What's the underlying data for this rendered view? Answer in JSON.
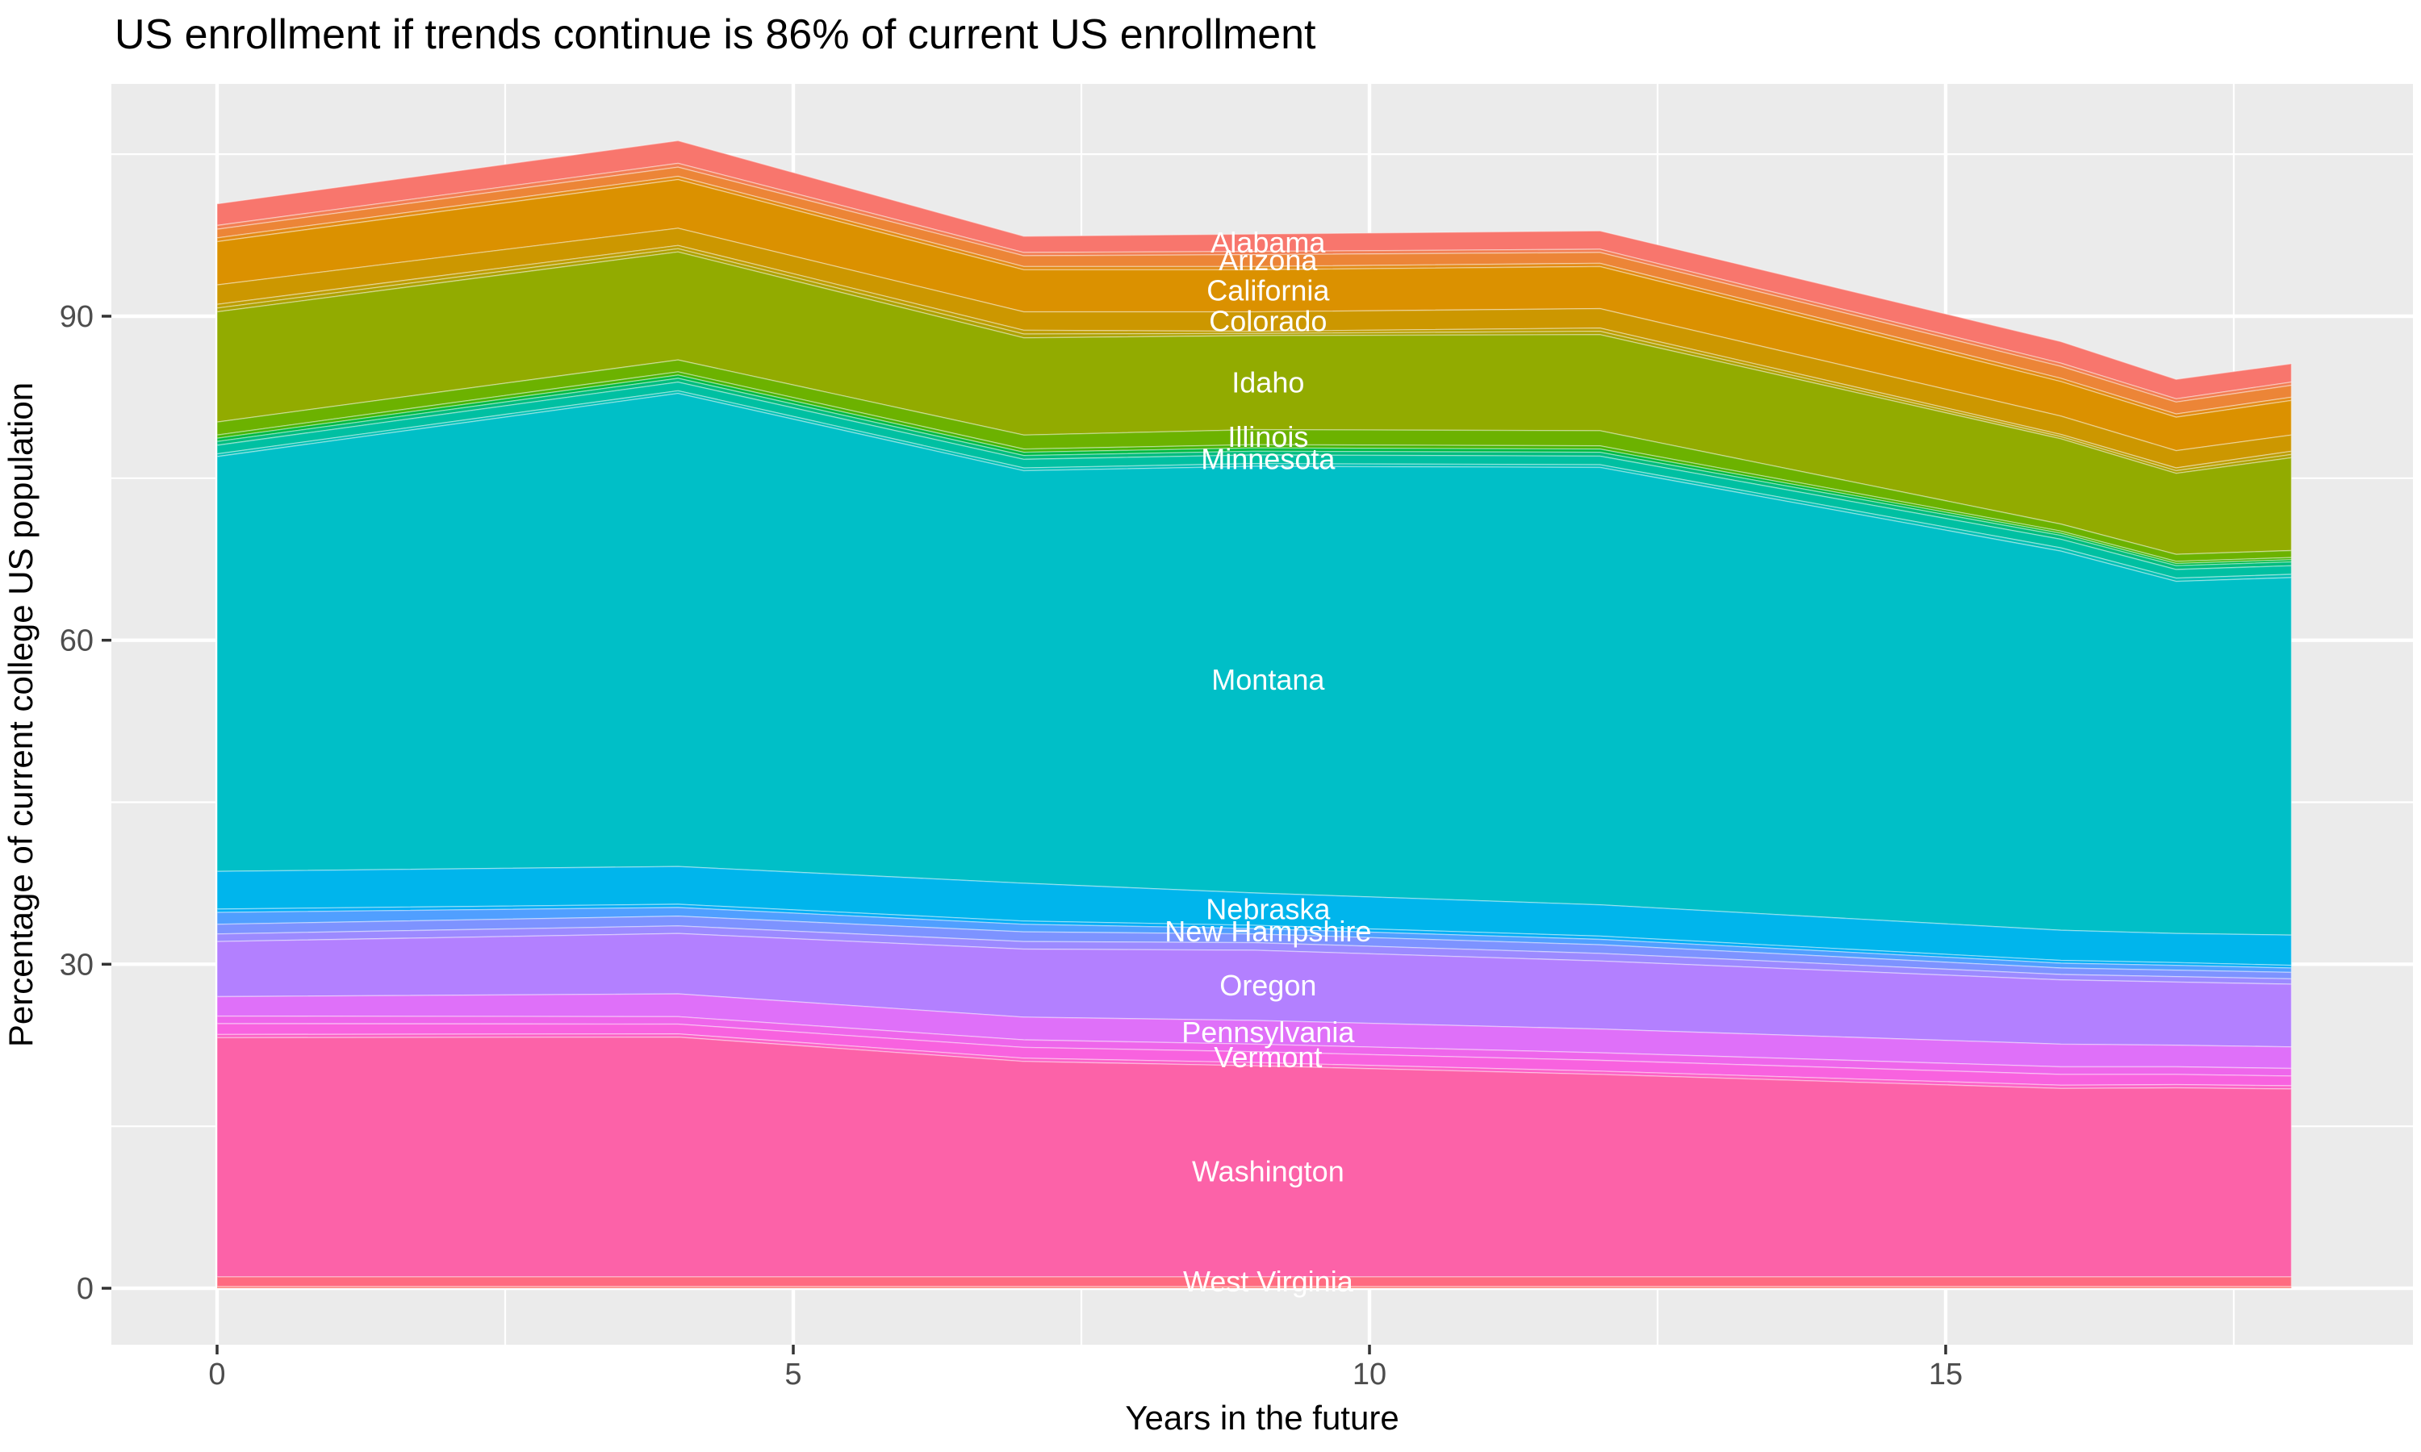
{
  "title": "US enrollment if trends continue is 86% of current US enrollment",
  "x_axis": {
    "label": "Years in the future",
    "tick_labels": [
      "0",
      "5",
      "10",
      "15"
    ],
    "tick_values": [
      0,
      5,
      10,
      15
    ],
    "minor_tick_values": [
      2.5,
      7.5,
      12.5,
      17.5
    ],
    "range": [
      0,
      18
    ]
  },
  "y_axis": {
    "label": "Percentage of current college US population",
    "tick_labels": [
      "0",
      "30",
      "60",
      "90"
    ],
    "tick_values": [
      0,
      30,
      60,
      90
    ],
    "minor_tick_values": [
      15,
      45,
      75,
      105
    ]
  },
  "panel": {
    "background": "#EBEBEB",
    "gridline_color": "#FFFFFF"
  },
  "colors": {
    "axis_text": "#4D4D4D",
    "tick_mark": "#333333",
    "band_label": "#FFFFFF",
    "title_text": "#000000"
  },
  "chart_data": {
    "type": "area",
    "stacked": true,
    "title": "US enrollment if trends continue is 86% of current US enrollment",
    "xlabel": "Years in the future",
    "ylabel": "Percentage of current college US population",
    "x": [
      0,
      4,
      7,
      9,
      12,
      16,
      17,
      18
    ],
    "xlim": [
      0,
      18
    ],
    "ylim": [
      0,
      112
    ],
    "grid": true,
    "legend_position": "none",
    "label_x": 9.12,
    "series_order": "top_to_bottom",
    "note": "Stacked band thicknesses (percent of current US college population) estimated at the x anchor years above; unnamed entries are thin unlabeled bands between the 15 state bands labeled in the figure. Stack total runs from about 100% at year 0, peaks near 107% at year 4, and ends near 86% at year 18.",
    "series": [
      {
        "name": "Alabama",
        "color": "#F8766D",
        "values": [
          2.0,
          2.1,
          1.5,
          1.6,
          1.7,
          2.0,
          1.8,
          1.7
        ]
      },
      {
        "name": "",
        "color": "#F27E53",
        "values": [
          0.35,
          0.35,
          0.3,
          0.3,
          0.3,
          0.3,
          0.3,
          0.3
        ]
      },
      {
        "name": "Arizona",
        "color": "#EC8537",
        "values": [
          0.8,
          0.85,
          1.0,
          1.1,
          1.0,
          1.1,
          1.1,
          1.1
        ]
      },
      {
        "name": "",
        "color": "#E38B15",
        "values": [
          0.35,
          0.3,
          0.3,
          0.3,
          0.3,
          0.3,
          0.3,
          0.3
        ]
      },
      {
        "name": "California",
        "color": "#DB9100",
        "values": [
          4.0,
          4.5,
          3.9,
          3.9,
          3.9,
          3.2,
          3.1,
          3.2
        ]
      },
      {
        "name": "Colorado",
        "color": "#CC9700",
        "values": [
          1.8,
          1.6,
          1.7,
          1.8,
          1.8,
          1.7,
          1.6,
          1.5
        ]
      },
      {
        "name": "",
        "color": "#BD9D00",
        "values": [
          0.35,
          0.3,
          0.35,
          0.2,
          0.3,
          0.2,
          0.25,
          0.3
        ]
      },
      {
        "name": "",
        "color": "#ADA200",
        "values": [
          0.35,
          0.3,
          0.35,
          0.2,
          0.3,
          0.2,
          0.25,
          0.3
        ]
      },
      {
        "name": "Idaho",
        "color": "#92AB00",
        "values": [
          10.2,
          10.0,
          9.0,
          8.7,
          8.9,
          7.9,
          7.5,
          8.6
        ]
      },
      {
        "name": "Illinois",
        "color": "#6CB200",
        "values": [
          1.2,
          1.1,
          1.3,
          1.4,
          1.4,
          0.65,
          0.65,
          0.65
        ]
      },
      {
        "name": "",
        "color": "#46B607",
        "values": [
          0.3,
          0.3,
          0.3,
          0.3,
          0.3,
          0.2,
          0.2,
          0.2
        ]
      },
      {
        "name": "",
        "color": "#00BA42",
        "values": [
          0.3,
          0.3,
          0.3,
          0.3,
          0.3,
          0.2,
          0.2,
          0.2
        ]
      },
      {
        "name": "",
        "color": "#00BD7E",
        "values": [
          0.35,
          0.35,
          0.35,
          0.35,
          0.35,
          0.35,
          0.35,
          0.35
        ]
      },
      {
        "name": "Minnesota",
        "color": "#00C0A2",
        "values": [
          0.8,
          0.8,
          0.8,
          0.8,
          0.8,
          0.8,
          0.8,
          0.8
        ]
      },
      {
        "name": "",
        "color": "#00C0B5",
        "values": [
          0.25,
          0.25,
          0.25,
          0.25,
          0.25,
          0.3,
          0.3,
          0.3
        ]
      },
      {
        "name": "Montana",
        "color": "#00BFC7",
        "values": [
          38.4,
          43.8,
          38.2,
          39.5,
          40.5,
          35.1,
          32.6,
          33.1
        ]
      },
      {
        "name": "Nebraska",
        "color": "#00B5EC",
        "values": [
          3.5,
          3.5,
          3.5,
          3.0,
          2.9,
          2.8,
          2.7,
          2.8
        ]
      },
      {
        "name": "",
        "color": "#00ADF6",
        "values": [
          0.3,
          0.3,
          0.3,
          0.3,
          0.3,
          0.25,
          0.25,
          0.25
        ]
      },
      {
        "name": "New Hampshire",
        "color": "#509FFF",
        "values": [
          1.1,
          0.8,
          0.7,
          0.5,
          0.5,
          0.45,
          0.45,
          0.4
        ]
      },
      {
        "name": "",
        "color": "#7D93FF",
        "values": [
          0.9,
          0.9,
          0.9,
          0.8,
          0.8,
          0.6,
          0.6,
          0.6
        ]
      },
      {
        "name": "",
        "color": "#9C8AFF",
        "values": [
          0.7,
          0.7,
          0.7,
          0.7,
          0.7,
          0.5,
          0.5,
          0.5
        ]
      },
      {
        "name": "Oregon",
        "color": "#B380FF",
        "values": [
          5.1,
          5.6,
          6.3,
          6.5,
          6.3,
          5.95,
          5.85,
          5.8
        ]
      },
      {
        "name": "Pennsylvania",
        "color": "#DF70F9",
        "values": [
          1.8,
          2.1,
          2.1,
          2.2,
          2.2,
          2.1,
          2.0,
          2.0
        ]
      },
      {
        "name": "",
        "color": "#EE66EB",
        "values": [
          0.7,
          0.7,
          0.7,
          0.7,
          0.7,
          0.7,
          0.7,
          0.7
        ]
      },
      {
        "name": "Vermont",
        "color": "#F862DF",
        "values": [
          1.0,
          0.9,
          1.0,
          1.0,
          1.0,
          1.0,
          0.95,
          0.9
        ]
      },
      {
        "name": "",
        "color": "#FC61C7",
        "values": [
          0.3,
          0.3,
          0.3,
          0.3,
          0.3,
          0.3,
          0.3,
          0.3
        ]
      },
      {
        "name": "Washington",
        "color": "#FC62A8",
        "values": [
          22.15,
          22.2,
          19.95,
          19.55,
          18.75,
          17.45,
          17.5,
          17.4
        ]
      },
      {
        "name": "West Virginia",
        "color": "#FF6B80",
        "values": [
          0.9,
          0.9,
          0.9,
          0.9,
          0.9,
          0.9,
          0.9,
          0.9
        ]
      },
      {
        "name": "",
        "color": "#FA7268",
        "values": [
          0.15,
          0.15,
          0.15,
          0.15,
          0.15,
          0.15,
          0.15,
          0.15
        ]
      }
    ]
  }
}
